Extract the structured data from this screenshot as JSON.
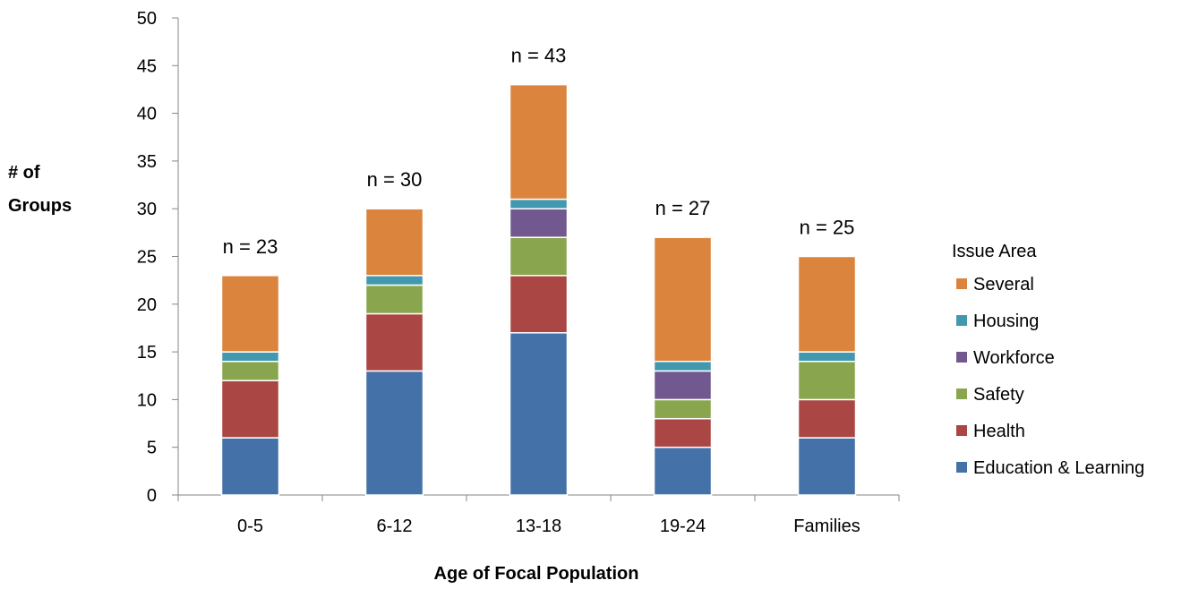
{
  "chart_data": {
    "type": "bar",
    "stacked": true,
    "categories": [
      "0-5",
      "6-12",
      "13-18",
      "19-24",
      "Families"
    ],
    "series": [
      {
        "name": "Education & Learning",
        "color": "#4472a8",
        "values": [
          6,
          13,
          17,
          5,
          6
        ]
      },
      {
        "name": "Health",
        "color": "#aa4643",
        "values": [
          6,
          6,
          6,
          3,
          4
        ]
      },
      {
        "name": "Safety",
        "color": "#89a54e",
        "values": [
          2,
          3,
          4,
          2,
          4
        ]
      },
      {
        "name": "Workforce",
        "color": "#71588f",
        "values": [
          0,
          0,
          3,
          3,
          0
        ]
      },
      {
        "name": "Housing",
        "color": "#4198af",
        "values": [
          1,
          1,
          1,
          1,
          1
        ]
      },
      {
        "name": "Several",
        "color": "#db843d",
        "values": [
          8,
          7,
          12,
          13,
          10
        ]
      }
    ],
    "totals_labels": [
      "n = 23",
      "n = 30",
      "n = 43",
      "n = 27",
      "n = 25"
    ],
    "ylabel_lines": [
      "# of",
      "Groups"
    ],
    "xlabel": "Age of Focal Population",
    "legend_title": "Issue Area",
    "legend_position": "right",
    "ylim": [
      0,
      50
    ],
    "yticks": [
      0,
      5,
      10,
      15,
      20,
      25,
      30,
      35,
      40,
      45,
      50
    ],
    "grid": false
  }
}
